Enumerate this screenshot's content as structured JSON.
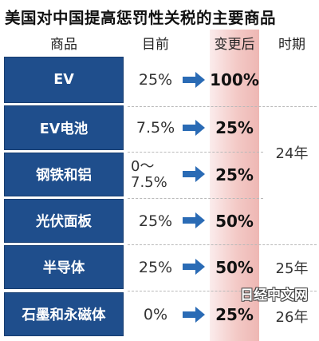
{
  "title": "美国对中国提高惩罚性关税的主要商品",
  "headers": {
    "item": "商品",
    "current": "目前",
    "after": "变更后",
    "period": "时期"
  },
  "rows": [
    {
      "item": "EV",
      "current_line1": "25%",
      "current_line2": "",
      "after": "100%"
    },
    {
      "item": "EV电池",
      "current_line1": "7.5%",
      "current_line2": "",
      "after": "25%"
    },
    {
      "item": "钢铁和铝",
      "current_line1": "0～",
      "current_line2": "7.5%",
      "after": "25%"
    },
    {
      "item": "光伏面板",
      "current_line1": "25%",
      "current_line2": "",
      "after": "50%"
    },
    {
      "item": "半导体",
      "current_line1": "25%",
      "current_line2": "",
      "after": "50%"
    },
    {
      "item": "石墨和永磁体",
      "current_line1": "0%",
      "current_line2": "",
      "after": "25%"
    }
  ],
  "periods": [
    "24年",
    "25年",
    "26年"
  ],
  "watermark": "日经中文网",
  "colors": {
    "item_box": "#1f4e8c",
    "arrow": "#2a6bb5",
    "after_column": "#f3c9c6"
  },
  "icons": {
    "arrow": "right-arrow-icon"
  }
}
